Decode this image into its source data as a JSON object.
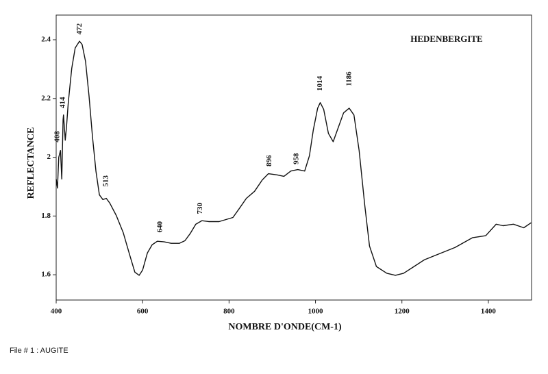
{
  "chart_data": {
    "type": "line",
    "title": "HEDENBERGITE",
    "xlabel": "NOMBRE D'ONDE(CM-1)",
    "ylabel": "REFLECTANCE",
    "x": [
      400,
      403,
      406,
      410,
      413,
      416,
      417,
      421,
      424,
      428,
      436,
      444,
      454,
      460,
      468,
      476,
      484,
      492,
      500,
      508,
      516,
      524,
      539,
      555,
      571,
      582,
      592,
      600,
      611,
      622,
      634,
      650,
      666,
      685,
      698,
      710,
      723,
      737,
      753,
      777,
      809,
      824,
      840,
      859,
      877,
      891,
      911,
      927,
      943,
      959,
      975,
      986,
      995,
      1005,
      1011,
      1019,
      1030,
      1041,
      1052,
      1065,
      1078,
      1089,
      1101,
      1114,
      1125,
      1141,
      1165,
      1185,
      1204,
      1228,
      1252,
      1284,
      1323,
      1363,
      1394,
      1418,
      1434,
      1458,
      1482,
      1499
    ],
    "values": [
      1.926,
      1.895,
      2.0,
      2.023,
      1.926,
      2.128,
      2.144,
      2.058,
      2.105,
      2.186,
      2.302,
      2.372,
      2.395,
      2.384,
      2.326,
      2.209,
      2.07,
      1.953,
      1.872,
      1.856,
      1.86,
      1.844,
      1.802,
      1.744,
      1.663,
      1.609,
      1.598,
      1.616,
      1.674,
      1.702,
      1.714,
      1.712,
      1.707,
      1.707,
      1.716,
      1.74,
      1.772,
      1.784,
      1.781,
      1.781,
      1.795,
      1.826,
      1.86,
      1.884,
      1.923,
      1.944,
      1.94,
      1.935,
      1.953,
      1.958,
      1.953,
      2.005,
      2.093,
      2.167,
      2.186,
      2.163,
      2.081,
      2.053,
      2.098,
      2.151,
      2.167,
      2.144,
      2.023,
      1.837,
      1.698,
      1.628,
      1.605,
      1.598,
      1.605,
      1.628,
      1.651,
      1.67,
      1.693,
      1.726,
      1.733,
      1.772,
      1.767,
      1.772,
      1.76,
      1.777
    ],
    "color": "#111111",
    "xlim": [
      400,
      1500
    ],
    "ylim": [
      1.514,
      2.484
    ],
    "xticks": [
      400,
      600,
      800,
      1000,
      1200,
      1400
    ],
    "yticks": [
      1.6,
      1.8,
      2,
      2.2,
      2.4
    ],
    "annotations": [
      {
        "text": "408",
        "x": 403,
        "y": 2.07
      },
      {
        "text": "414",
        "x": 416,
        "y": 2.186
      },
      {
        "text": "472",
        "x": 455,
        "y": 2.437
      },
      {
        "text": "513",
        "x": 516,
        "y": 1.919
      },
      {
        "text": "640",
        "x": 641,
        "y": 1.763
      },
      {
        "text": "730",
        "x": 734,
        "y": 1.826
      },
      {
        "text": "896",
        "x": 894,
        "y": 1.988
      },
      {
        "text": "958",
        "x": 956,
        "y": 1.995
      },
      {
        "text": "1014",
        "x": 1011,
        "y": 2.251
      },
      {
        "text": "1186",
        "x": 1078,
        "y": 2.267
      }
    ]
  },
  "footer": "File # 1 : AUGITE"
}
